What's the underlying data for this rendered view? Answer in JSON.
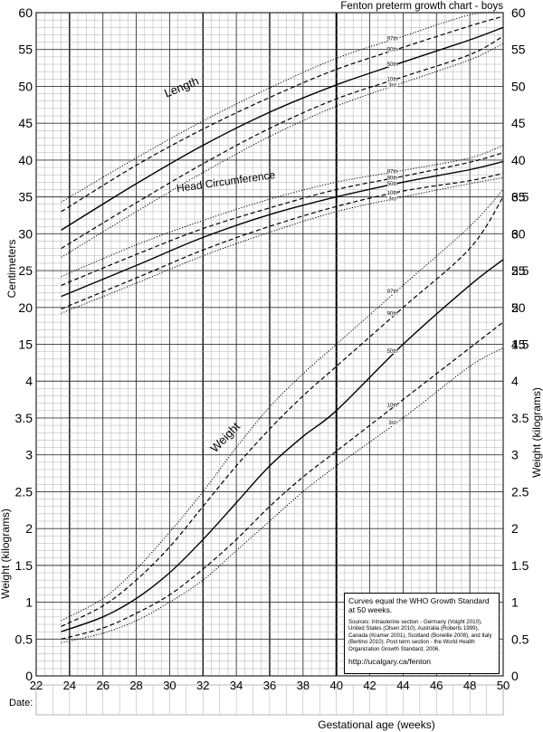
{
  "chart_data": {
    "type": "line",
    "title": "Fenton preterm growth chart - boys",
    "xlabel": "Gestational age (weeks)",
    "ylabel_cm_left": "Centimeters",
    "ylabel_wt_left": "Weight (kilograms)",
    "ylabel_wt_right": "Weight (kilograms)",
    "date_label": "Date:",
    "xlim": [
      22,
      50
    ],
    "x_ticks": [
      22,
      24,
      26,
      28,
      30,
      32,
      34,
      36,
      38,
      40,
      42,
      44,
      46,
      48,
      50
    ],
    "cm_ylim": [
      15,
      60
    ],
    "cm_ticks": [
      15,
      20,
      25,
      30,
      35,
      40,
      45,
      50,
      55,
      60
    ],
    "weight_ylim": [
      0,
      6.5
    ],
    "weight_ticks_left": [
      "0",
      "0.5",
      "1",
      "1.5",
      "2",
      "2.5",
      "3",
      "3.5",
      "4"
    ],
    "weight_ticks_right": [
      "0",
      "0.5",
      "1",
      "1.5",
      "2",
      "2.5",
      "3",
      "3.5",
      "4",
      "4.5",
      "5",
      "5.5",
      "6",
      "6.5"
    ],
    "curve_labels": {
      "length": "Length",
      "head": "Head Circumference",
      "weight": "Weight"
    },
    "percentiles": [
      "97th",
      "90th",
      "50th",
      "10th",
      "3rd"
    ],
    "groups": [
      {
        "name": "Length",
        "unit": "cm",
        "series": [
          {
            "name": "97th",
            "style": "dotted",
            "x": [
              23.5,
              28,
              32,
              36,
              40,
              44,
              48,
              50
            ],
            "y": [
              34.3,
              40.3,
              45.3,
              49.8,
              53.8,
              56.8,
              59.7,
              60.0
            ]
          },
          {
            "name": "90th",
            "style": "dashed",
            "x": [
              23.5,
              28,
              32,
              36,
              40,
              44,
              48,
              50
            ],
            "y": [
              33.0,
              39.3,
              44.2,
              48.5,
              52.3,
              55.3,
              58.2,
              59.5
            ]
          },
          {
            "name": "50th",
            "style": "solid",
            "x": [
              23.5,
              28,
              32,
              36,
              40,
              44,
              48,
              50
            ],
            "y": [
              30.5,
              36.8,
              42.0,
              46.5,
              50.2,
              53.3,
              56.3,
              58.0
            ]
          },
          {
            "name": "10th",
            "style": "dashed",
            "x": [
              23.5,
              28,
              32,
              36,
              40,
              44,
              48,
              50
            ],
            "y": [
              28.0,
              34.2,
              39.5,
              44.3,
              48.3,
              51.3,
              54.3,
              56.8
            ]
          },
          {
            "name": "3rd",
            "style": "dotted",
            "x": [
              23.5,
              28,
              32,
              36,
              40,
              44,
              48,
              50
            ],
            "y": [
              26.8,
              33.0,
              38.3,
              43.2,
              47.3,
              50.5,
              53.6,
              55.8
            ]
          }
        ]
      },
      {
        "name": "Head Circumference",
        "unit": "cm",
        "series": [
          {
            "name": "97th",
            "style": "dotted",
            "x": [
              23.5,
              28,
              32,
              36,
              40,
              44,
              48,
              50
            ],
            "y": [
              24.2,
              28.5,
              31.8,
              34.7,
              37.0,
              38.6,
              40.3,
              42.0
            ]
          },
          {
            "name": "90th",
            "style": "dashed",
            "x": [
              23.5,
              28,
              32,
              36,
              40,
              44,
              48,
              50
            ],
            "y": [
              23.0,
              27.2,
              30.7,
              33.5,
              36.0,
              37.8,
              39.7,
              41.0
            ]
          },
          {
            "name": "50th",
            "style": "solid",
            "x": [
              23.5,
              28,
              32,
              36,
              40,
              44,
              48,
              50
            ],
            "y": [
              21.5,
              25.7,
              29.5,
              32.6,
              35.0,
              37.0,
              38.7,
              39.8
            ]
          },
          {
            "name": "10th",
            "style": "dashed",
            "x": [
              23.5,
              28,
              32,
              36,
              40,
              44,
              48,
              50
            ],
            "y": [
              19.8,
              24.0,
              27.8,
              31.0,
              33.7,
              35.8,
              37.2,
              38.2
            ]
          },
          {
            "name": "3rd",
            "style": "dotted",
            "x": [
              23.5,
              28,
              32,
              36,
              40,
              44,
              48,
              50
            ],
            "y": [
              19.2,
              23.3,
              27.0,
              30.2,
              33.0,
              35.0,
              36.8,
              37.6
            ]
          }
        ]
      },
      {
        "name": "Weight",
        "unit": "kg",
        "series": [
          {
            "name": "97th",
            "style": "dotted",
            "x": [
              23.5,
              26,
              28,
              30,
              32,
              34,
              36,
              38,
              40,
              44,
              48,
              50
            ],
            "y": [
              0.75,
              1.05,
              1.45,
              1.95,
              2.5,
              3.1,
              3.65,
              4.1,
              4.5,
              5.3,
              6.1,
              6.6
            ]
          },
          {
            "name": "90th",
            "style": "dashed",
            "x": [
              23.5,
              26,
              28,
              30,
              32,
              34,
              36,
              38,
              40,
              44,
              48,
              50
            ],
            "y": [
              0.67,
              0.95,
              1.3,
              1.75,
              2.3,
              2.85,
              3.35,
              3.8,
              4.2,
              5.0,
              5.8,
              6.5
            ]
          },
          {
            "name": "50th",
            "style": "solid",
            "x": [
              23.5,
              26,
              28,
              30,
              32,
              34,
              36,
              38,
              40,
              44,
              48,
              50
            ],
            "y": [
              0.6,
              0.8,
              1.05,
              1.4,
              1.85,
              2.35,
              2.85,
              3.25,
              3.6,
              4.5,
              5.3,
              5.65
            ]
          },
          {
            "name": "10th",
            "style": "dashed",
            "x": [
              23.5,
              26,
              28,
              30,
              32,
              34,
              36,
              38,
              40,
              44,
              48,
              50
            ],
            "y": [
              0.5,
              0.65,
              0.85,
              1.1,
              1.45,
              1.85,
              2.3,
              2.7,
              3.05,
              3.75,
              4.45,
              4.8
            ]
          },
          {
            "name": "3rd",
            "style": "dotted",
            "x": [
              23.5,
              26,
              28,
              30,
              32,
              34,
              36,
              38,
              40,
              44,
              48,
              50
            ],
            "y": [
              0.45,
              0.58,
              0.75,
              1.0,
              1.3,
              1.7,
              2.1,
              2.5,
              2.85,
              3.5,
              4.2,
              4.45
            ]
          }
        ]
      }
    ],
    "grid": true,
    "legend": "none"
  },
  "info_box": {
    "note": "Curves equal the WHO Growth Standard at 50 weeks.",
    "sources": "Sources: Intrauterine section - Germany (Voight 2010), United States (Olsen 2010), Australia (Roberts 1999), Canada (Kramer 2001), Scotland (Bonellie 2008), and Italy (Bertino 2010). Post term section - the World Health Organization Growth Standard, 2006.",
    "url": "http://ucalgary.ca/fenton"
  }
}
